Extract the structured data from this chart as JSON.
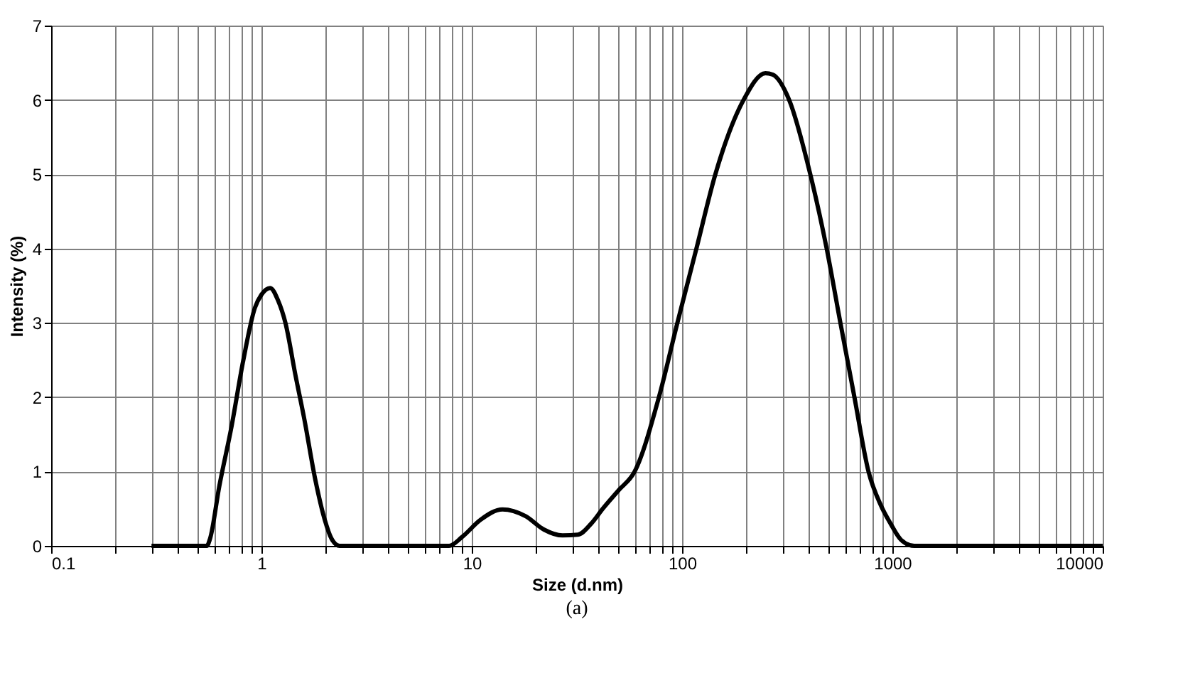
{
  "chart_data": {
    "type": "line",
    "xlabel": "Size (d.nm)",
    "ylabel": "Intensity (%)",
    "annotations": [
      "(a)"
    ],
    "log": "x",
    "grid": true,
    "legend": false,
    "marker": "none",
    "line_style": "solid",
    "xlim": [
      0.1,
      10000
    ],
    "ylim": [
      0,
      7
    ],
    "yticks": [
      0,
      1,
      2,
      3,
      4,
      5,
      6,
      7
    ],
    "xticks": [
      0.1,
      {
        "value": 0.2,
        "label": null
      },
      {
        "value": 0.3,
        "label": null
      },
      {
        "value": 0.4,
        "label": null
      },
      {
        "value": 0.5,
        "label": null
      },
      {
        "value": 0.6,
        "label": null
      },
      {
        "value": 0.7,
        "label": null
      },
      {
        "value": 0.8,
        "label": null
      },
      {
        "value": 0.9,
        "label": null
      },
      1,
      {
        "value": 2,
        "label": null
      },
      {
        "value": 3,
        "label": null
      },
      {
        "value": 4,
        "label": null
      },
      {
        "value": 5,
        "label": null
      },
      {
        "value": 6,
        "label": null
      },
      {
        "value": 7,
        "label": null
      },
      {
        "value": 8,
        "label": null
      },
      {
        "value": 9,
        "label": null
      },
      10,
      {
        "value": 20,
        "label": null
      },
      {
        "value": 30,
        "label": null
      },
      {
        "value": 40,
        "label": null
      },
      {
        "value": 50,
        "label": null
      },
      {
        "value": 60,
        "label": null
      },
      {
        "value": 70,
        "label": null
      },
      {
        "value": 80,
        "label": null
      },
      {
        "value": 90,
        "label": null
      },
      100,
      {
        "value": 200,
        "label": null
      },
      {
        "value": 300,
        "label": null
      },
      {
        "value": 400,
        "label": null
      },
      {
        "value": 500,
        "label": null
      },
      {
        "value": 600,
        "label": null
      },
      {
        "value": 700,
        "label": null
      },
      {
        "value": 800,
        "label": null
      },
      {
        "value": 900,
        "label": null
      },
      1000,
      {
        "value": 2000,
        "label": null
      },
      {
        "value": 3000,
        "label": null
      },
      {
        "value": 4000,
        "label": null
      },
      {
        "value": 5000,
        "label": null
      },
      {
        "value": 6000,
        "label": null
      },
      {
        "value": 7000,
        "label": null
      },
      {
        "value": 8000,
        "label": null
      },
      {
        "value": 9000,
        "label": null
      },
      10000
    ],
    "series": [
      {
        "color": "#000000",
        "x": [
          0.3,
          0.55,
          0.57,
          0.63,
          0.72,
          0.82,
          0.93,
          1.0,
          1.1,
          1.2,
          1.3,
          1.45,
          1.6,
          1.8,
          2.0,
          2.15,
          2.35,
          7.8,
          9,
          11,
          14,
          18,
          22,
          27,
          32,
          37,
          42,
          50,
          59.5,
          77.6,
          95,
          117,
          144,
          196,
          249,
          270,
          323,
          407,
          487,
          566,
          660,
          770,
          880,
          980,
          1100,
          1270,
          10000
        ],
        "values": [
          0,
          0,
          0.1,
          0.8,
          1.6,
          2.5,
          3.2,
          3.38,
          3.47,
          3.3,
          3.0,
          2.3,
          1.7,
          0.9,
          0.35,
          0.1,
          0,
          0,
          0.12,
          0.35,
          0.49,
          0.4,
          0.22,
          0.14,
          0.15,
          0.3,
          0.5,
          0.75,
          1.0,
          2.0,
          3.0,
          4.0,
          5.0,
          6.0,
          6.36,
          6.34,
          6.0,
          5.0,
          4.0,
          3.0,
          2.0,
          1.0,
          0.55,
          0.3,
          0.08,
          0,
          0
        ]
      }
    ]
  }
}
